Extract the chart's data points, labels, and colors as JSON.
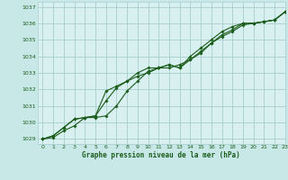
{
  "title": "Graphe pression niveau de la mer (hPa)",
  "bg_color": "#c8e8e8",
  "plot_bg_color": "#d8f0f0",
  "line_color": "#1a5c1a",
  "grid_color": "#a8cece",
  "text_color": "#1a5c1a",
  "xlim": [
    -0.5,
    23
  ],
  "ylim": [
    1028.7,
    1037.3
  ],
  "yticks": [
    1029,
    1030,
    1031,
    1032,
    1033,
    1034,
    1035,
    1036,
    1037
  ],
  "xticks": [
    0,
    1,
    2,
    3,
    4,
    5,
    6,
    7,
    8,
    9,
    10,
    11,
    12,
    13,
    14,
    15,
    16,
    17,
    18,
    19,
    20,
    21,
    22,
    23
  ],
  "series": [
    [
      1029.0,
      1029.1,
      1029.5,
      1029.8,
      1030.3,
      1030.3,
      1030.4,
      1031.0,
      1031.9,
      1032.5,
      1033.1,
      1033.3,
      1033.5,
      1033.3,
      1033.8,
      1034.2,
      1034.8,
      1035.2,
      1035.5,
      1035.9,
      1036.0,
      1036.1,
      1036.2,
      1036.7
    ],
    [
      1029.0,
      1029.2,
      1029.7,
      1030.2,
      1030.3,
      1030.4,
      1031.3,
      1032.1,
      1032.5,
      1032.8,
      1033.0,
      1033.3,
      1033.3,
      1033.5,
      1033.8,
      1034.3,
      1034.8,
      1035.3,
      1035.6,
      1036.0,
      1036.0,
      1036.1,
      1036.2,
      1036.7
    ],
    [
      1029.0,
      1029.2,
      1029.7,
      1030.2,
      1030.3,
      1030.4,
      1031.9,
      1032.2,
      1032.5,
      1033.0,
      1033.3,
      1033.3,
      1033.5,
      1033.3,
      1034.0,
      1034.5,
      1035.0,
      1035.5,
      1035.8,
      1036.0,
      1036.0,
      1036.1,
      1036.2,
      1036.7
    ]
  ],
  "figsize": [
    3.2,
    2.0
  ],
  "dpi": 100
}
